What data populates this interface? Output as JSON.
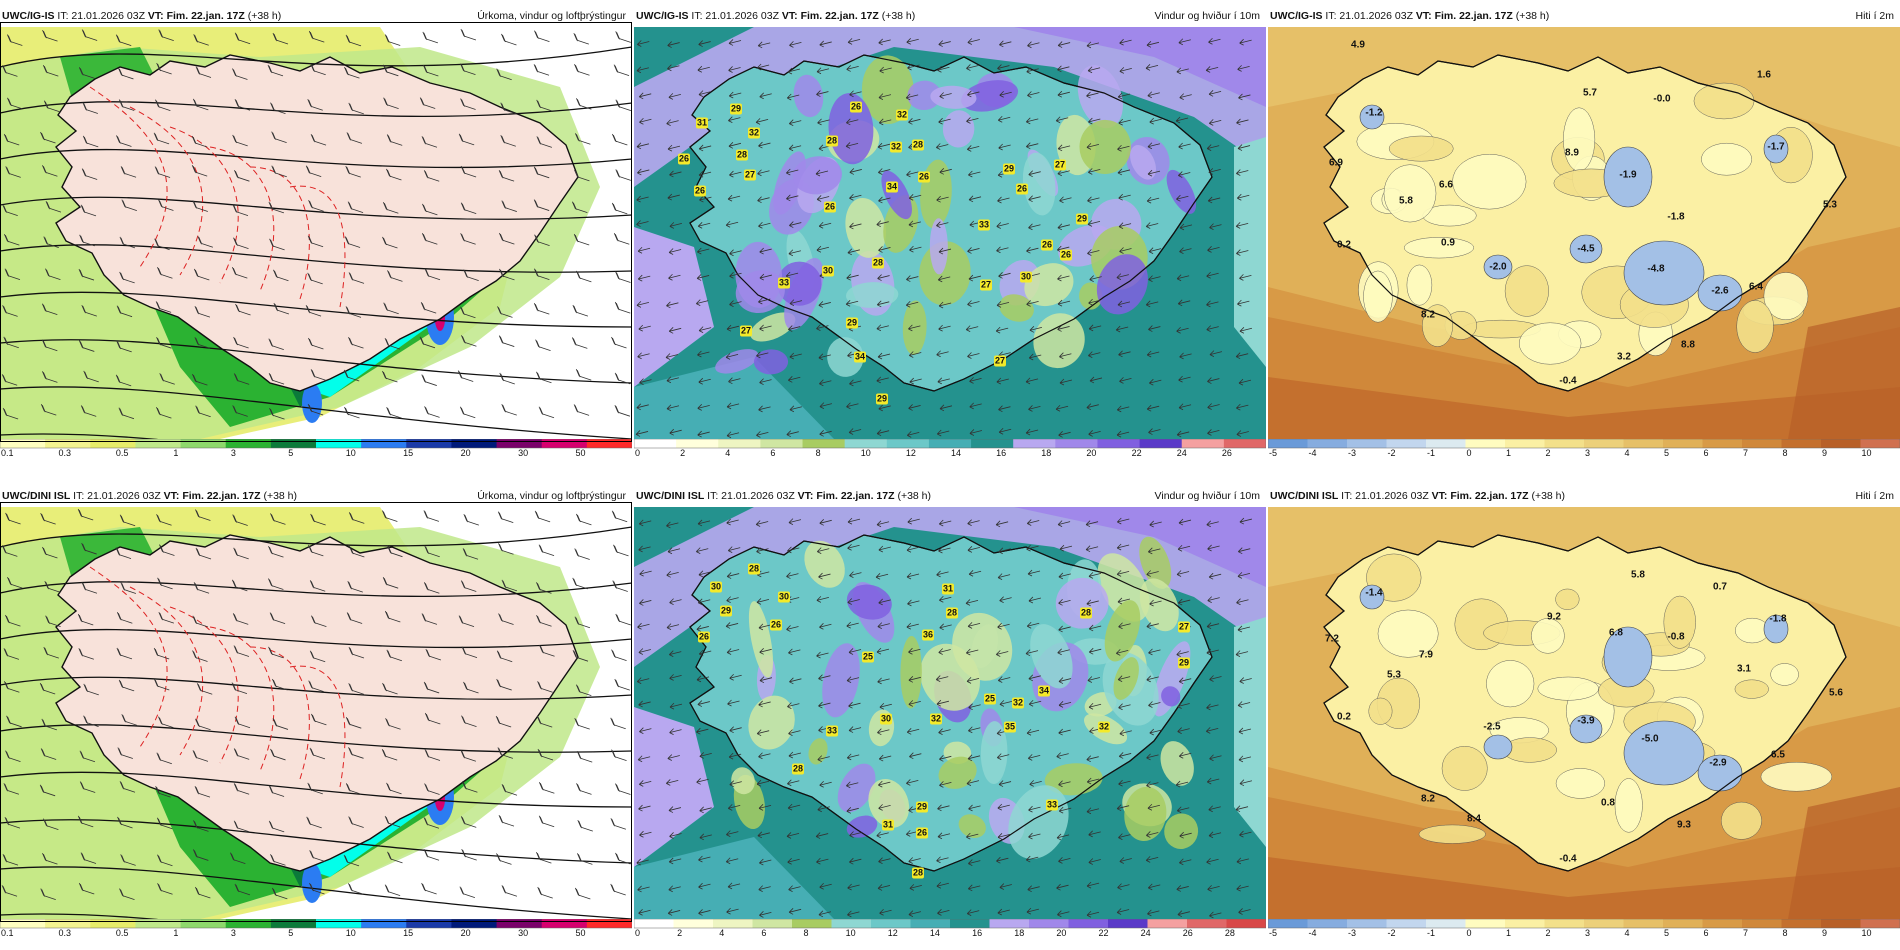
{
  "panels": [
    {
      "id": "p1",
      "row": 0,
      "col": 0,
      "kind": "precip",
      "model": "UWC/IG-IS",
      "it": "IT: 21.01.2026 03Z",
      "vt": "VT: Fim. 22.jan. 17Z",
      "lead": "(+38 h)",
      "title": "Úrkoma, vindur og loftþrýstingur",
      "scale": [
        "0.1",
        "0.3",
        "0.5",
        "1",
        "3",
        "5",
        "10",
        "15",
        "20",
        "30",
        "50"
      ],
      "colors": [
        "#ffffc0",
        "#f3f390",
        "#e6ec6a",
        "#bfe88a",
        "#8ed86c",
        "#2bb232",
        "#0b7a3a",
        "#02ffea",
        "#2b7cf2",
        "#1a3aa8",
        "#001a7a",
        "#7a006a",
        "#d6006e",
        "#ff2a2a"
      ]
    },
    {
      "id": "p2",
      "row": 0,
      "col": 1,
      "kind": "wind",
      "model": "UWC/IG-IS",
      "it": "IT: 21.01.2026 03Z",
      "vt": "VT: Fim. 22.jan. 17Z",
      "lead": "(+38 h)",
      "title": "Vindur og hviður í 10m",
      "scale": [
        "0",
        "2",
        "4",
        "6",
        "8",
        "10",
        "12",
        "14",
        "16",
        "18",
        "20",
        "22",
        "24",
        "26"
      ],
      "colors": [
        "#ffffff",
        "#ffffdc",
        "#eef5c2",
        "#cfe6a2",
        "#a8cc62",
        "#8ed7d2",
        "#6cc8c8",
        "#46aeb4",
        "#24928e",
        "#b8a8f0",
        "#a088ea",
        "#8060e0",
        "#5a3ac8",
        "#f4a0a0",
        "#e06868"
      ],
      "labels": [
        [
          "31",
          68,
          96
        ],
        [
          "29",
          102,
          82
        ],
        [
          "32",
          120,
          106
        ],
        [
          "26",
          50,
          132
        ],
        [
          "28",
          108,
          128
        ],
        [
          "27",
          116,
          148
        ],
        [
          "26",
          66,
          164
        ],
        [
          "26",
          222,
          80
        ],
        [
          "28",
          198,
          114
        ],
        [
          "32",
          268,
          88
        ],
        [
          "32",
          262,
          120
        ],
        [
          "28",
          284,
          118
        ],
        [
          "26",
          290,
          150
        ],
        [
          "26",
          196,
          180
        ],
        [
          "34",
          258,
          160
        ],
        [
          "29",
          375,
          142
        ],
        [
          "27",
          426,
          138
        ],
        [
          "26",
          388,
          162
        ],
        [
          "29",
          448,
          192
        ],
        [
          "33",
          350,
          198
        ],
        [
          "26",
          413,
          218
        ],
        [
          "26",
          432,
          228
        ],
        [
          "28",
          244,
          236
        ],
        [
          "30",
          194,
          244
        ],
        [
          "33",
          150,
          256
        ],
        [
          "27",
          352,
          258
        ],
        [
          "30",
          392,
          250
        ],
        [
          "29",
          218,
          296
        ],
        [
          "27",
          112,
          304
        ],
        [
          "34",
          226,
          330
        ],
        [
          "27",
          366,
          334
        ],
        [
          "29",
          248,
          372
        ]
      ]
    },
    {
      "id": "p3",
      "row": 0,
      "col": 2,
      "kind": "temp",
      "model": "UWC/IG-IS",
      "it": "IT: 21.01.2026 03Z",
      "vt": "VT: Fim. 22.jan. 17Z",
      "lead": "(+38 h)",
      "title": "Hiti í 2m",
      "scale": [
        "-5",
        "-4",
        "-3",
        "-2",
        "-1",
        "0",
        "1",
        "2",
        "3",
        "4",
        "5",
        "6",
        "7",
        "8",
        "9",
        "10"
      ],
      "colors": [
        "#6a9ad8",
        "#86acdf",
        "#a3c0e6",
        "#c2d6ee",
        "#dceaf0",
        "#fffcc0",
        "#fbf0a4",
        "#f3e08a",
        "#ecd07a",
        "#e6c068",
        "#e0b058",
        "#d89a46",
        "#d0883a",
        "#c4702e",
        "#b86028",
        "#d07050"
      ],
      "labels": [
        [
          "4.9",
          90,
          18
        ],
        [
          "-1.2",
          106,
          86
        ],
        [
          "6.9",
          68,
          136
        ],
        [
          "5.7",
          322,
          66
        ],
        [
          "-0.0",
          394,
          72
        ],
        [
          "1.6",
          496,
          48
        ],
        [
          "-1.7",
          508,
          120
        ],
        [
          "8.9",
          304,
          126
        ],
        [
          "-1.9",
          360,
          148
        ],
        [
          "6.6",
          178,
          158
        ],
        [
          "5.8",
          138,
          174
        ],
        [
          "-1.8",
          408,
          190
        ],
        [
          "5.3",
          562,
          178
        ],
        [
          "0.2",
          76,
          218
        ],
        [
          "0.9",
          180,
          216
        ],
        [
          "-4.5",
          318,
          222
        ],
        [
          "-2.0",
          230,
          240
        ],
        [
          "-4.8",
          388,
          242
        ],
        [
          "-2.6",
          452,
          264
        ],
        [
          "6.4",
          488,
          260
        ],
        [
          "8.2",
          160,
          288
        ],
        [
          "3.2",
          356,
          330
        ],
        [
          "8.8",
          420,
          318
        ],
        [
          "-0.4",
          300,
          354
        ]
      ]
    },
    {
      "id": "p4",
      "row": 1,
      "col": 0,
      "kind": "precip",
      "model": "UWC/DINI ISL",
      "it": "IT: 21.01.2026 03Z",
      "vt": "VT: Fim. 22.jan. 17Z",
      "lead": "(+38 h)",
      "title": "Úrkoma, vindur og loftþrýstingur",
      "scale": [
        "0.1",
        "0.3",
        "0.5",
        "1",
        "3",
        "5",
        "10",
        "15",
        "20",
        "30",
        "50"
      ],
      "colors": [
        "#ffffc0",
        "#f3f390",
        "#e6ec6a",
        "#bfe88a",
        "#8ed86c",
        "#2bb232",
        "#0b7a3a",
        "#02ffea",
        "#2b7cf2",
        "#1a3aa8",
        "#001a7a",
        "#7a006a",
        "#d6006e",
        "#ff2a2a"
      ]
    },
    {
      "id": "p5",
      "row": 1,
      "col": 1,
      "kind": "wind",
      "model": "UWC/DINI ISL",
      "it": "IT: 21.01.2026 03Z",
      "vt": "VT: Fim. 22.jan. 17Z",
      "lead": "(+38 h)",
      "title": "Vindur og hviður í 10m",
      "scale": [
        "0",
        "2",
        "4",
        "6",
        "8",
        "10",
        "12",
        "14",
        "16",
        "18",
        "20",
        "22",
        "24",
        "26",
        "28"
      ],
      "colors": [
        "#ffffff",
        "#ffffdc",
        "#eef5c2",
        "#cfe6a2",
        "#a8cc62",
        "#8ed7d2",
        "#6cc8c8",
        "#46aeb4",
        "#24928e",
        "#b8a8f0",
        "#a088ea",
        "#8060e0",
        "#5a3ac8",
        "#f4a0a0",
        "#e06868",
        "#d84848"
      ],
      "labels": [
        [
          "28",
          120,
          62
        ],
        [
          "30",
          82,
          80
        ],
        [
          "30",
          150,
          90
        ],
        [
          "29",
          92,
          104
        ],
        [
          "26",
          142,
          118
        ],
        [
          "26",
          70,
          130
        ],
        [
          "31",
          314,
          82
        ],
        [
          "28",
          318,
          106
        ],
        [
          "36",
          294,
          128
        ],
        [
          "28",
          452,
          106
        ],
        [
          "27",
          550,
          120
        ],
        [
          "25",
          234,
          150
        ],
        [
          "29",
          550,
          156
        ],
        [
          "25",
          356,
          192
        ],
        [
          "32",
          384,
          196
        ],
        [
          "34",
          410,
          184
        ],
        [
          "30",
          252,
          212
        ],
        [
          "32",
          302,
          212
        ],
        [
          "35",
          376,
          220
        ],
        [
          "32",
          470,
          220
        ],
        [
          "33",
          198,
          224
        ],
        [
          "28",
          164,
          262
        ],
        [
          "29",
          288,
          300
        ],
        [
          "33",
          418,
          298
        ],
        [
          "31",
          254,
          318
        ],
        [
          "26",
          288,
          326
        ],
        [
          "28",
          284,
          366
        ]
      ]
    },
    {
      "id": "p6",
      "row": 1,
      "col": 2,
      "kind": "temp",
      "model": "UWC/DINI ISL",
      "it": "IT: 21.01.2026 03Z",
      "vt": "VT: Fim. 22.jan. 17Z",
      "lead": "(+38 h)",
      "title": "Hiti í 2m",
      "scale": [
        "-5",
        "-4",
        "-3",
        "-2",
        "-1",
        "0",
        "1",
        "2",
        "3",
        "4",
        "5",
        "6",
        "7",
        "8",
        "9",
        "10"
      ],
      "colors": [
        "#6a9ad8",
        "#86acdf",
        "#a3c0e6",
        "#c2d6ee",
        "#dceaf0",
        "#fffcc0",
        "#fbf0a4",
        "#f3e08a",
        "#ecd07a",
        "#e6c068",
        "#e0b058",
        "#d89a46",
        "#d0883a",
        "#c4702e",
        "#b86028",
        "#d07050"
      ],
      "labels": [
        [
          "-1.4",
          106,
          86
        ],
        [
          "5.8",
          370,
          68
        ],
        [
          "0.7",
          452,
          80
        ],
        [
          "7.2",
          64,
          132
        ],
        [
          "9.2",
          286,
          110
        ],
        [
          "6.8",
          348,
          126
        ],
        [
          "-0.8",
          408,
          130
        ],
        [
          "-1.8",
          510,
          112
        ],
        [
          "7.9",
          158,
          148
        ],
        [
          "5.3",
          126,
          168
        ],
        [
          "3.1",
          476,
          162
        ],
        [
          "5.6",
          568,
          186
        ],
        [
          "0.2",
          76,
          210
        ],
        [
          "-3.9",
          318,
          214
        ],
        [
          "-2.5",
          224,
          220
        ],
        [
          "-5.0",
          382,
          232
        ],
        [
          "6.5",
          510,
          248
        ],
        [
          "-2.9",
          450,
          256
        ],
        [
          "8.2",
          160,
          292
        ],
        [
          "0.8",
          340,
          296
        ],
        [
          "8.4",
          206,
          312
        ],
        [
          "9.3",
          416,
          318
        ],
        [
          "-0.4",
          300,
          352
        ]
      ]
    }
  ]
}
